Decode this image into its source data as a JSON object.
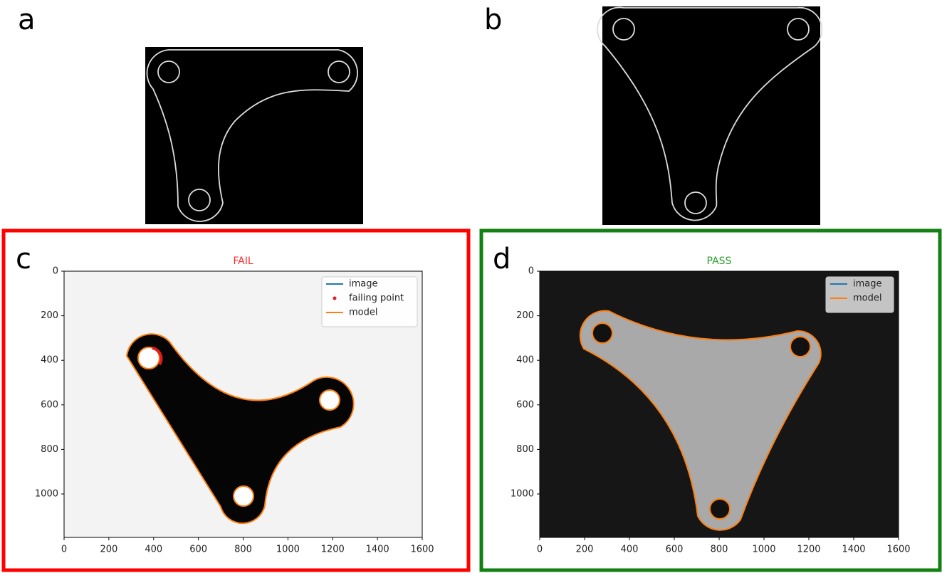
{
  "panels": [
    {
      "label": "a"
    },
    {
      "label": "b"
    },
    {
      "label": "c",
      "title": "FAIL",
      "title_color": "#ff2a2a",
      "border_color": "#ff0000",
      "xlim": [
        0,
        1600
      ],
      "ylim": [
        1195,
        0
      ],
      "xticks": [
        0,
        200,
        400,
        600,
        800,
        1000,
        1200,
        1400,
        1600
      ],
      "yticks": [
        0,
        200,
        400,
        600,
        800,
        1000
      ],
      "legend": [
        {
          "name": "image",
          "color": "#1f77b4",
          "marker": "line"
        },
        {
          "name": "failing point",
          "color": "#e41a1c",
          "marker": "dot"
        },
        {
          "name": "model",
          "color": "#ff7f0e",
          "marker": "line"
        }
      ]
    },
    {
      "label": "d",
      "title": "PASS",
      "title_color": "#2ca02c",
      "border_color": "#138013",
      "xlim": [
        0,
        1600
      ],
      "ylim": [
        1195,
        0
      ],
      "xticks": [
        0,
        200,
        400,
        600,
        800,
        1000,
        1200,
        1400,
        1600
      ],
      "yticks": [
        0,
        200,
        400,
        600,
        800,
        1000
      ],
      "legend": [
        {
          "name": "image",
          "color": "#1f77b4",
          "marker": "line"
        },
        {
          "name": "model",
          "color": "#ff7f0e",
          "marker": "line"
        }
      ]
    }
  ]
}
